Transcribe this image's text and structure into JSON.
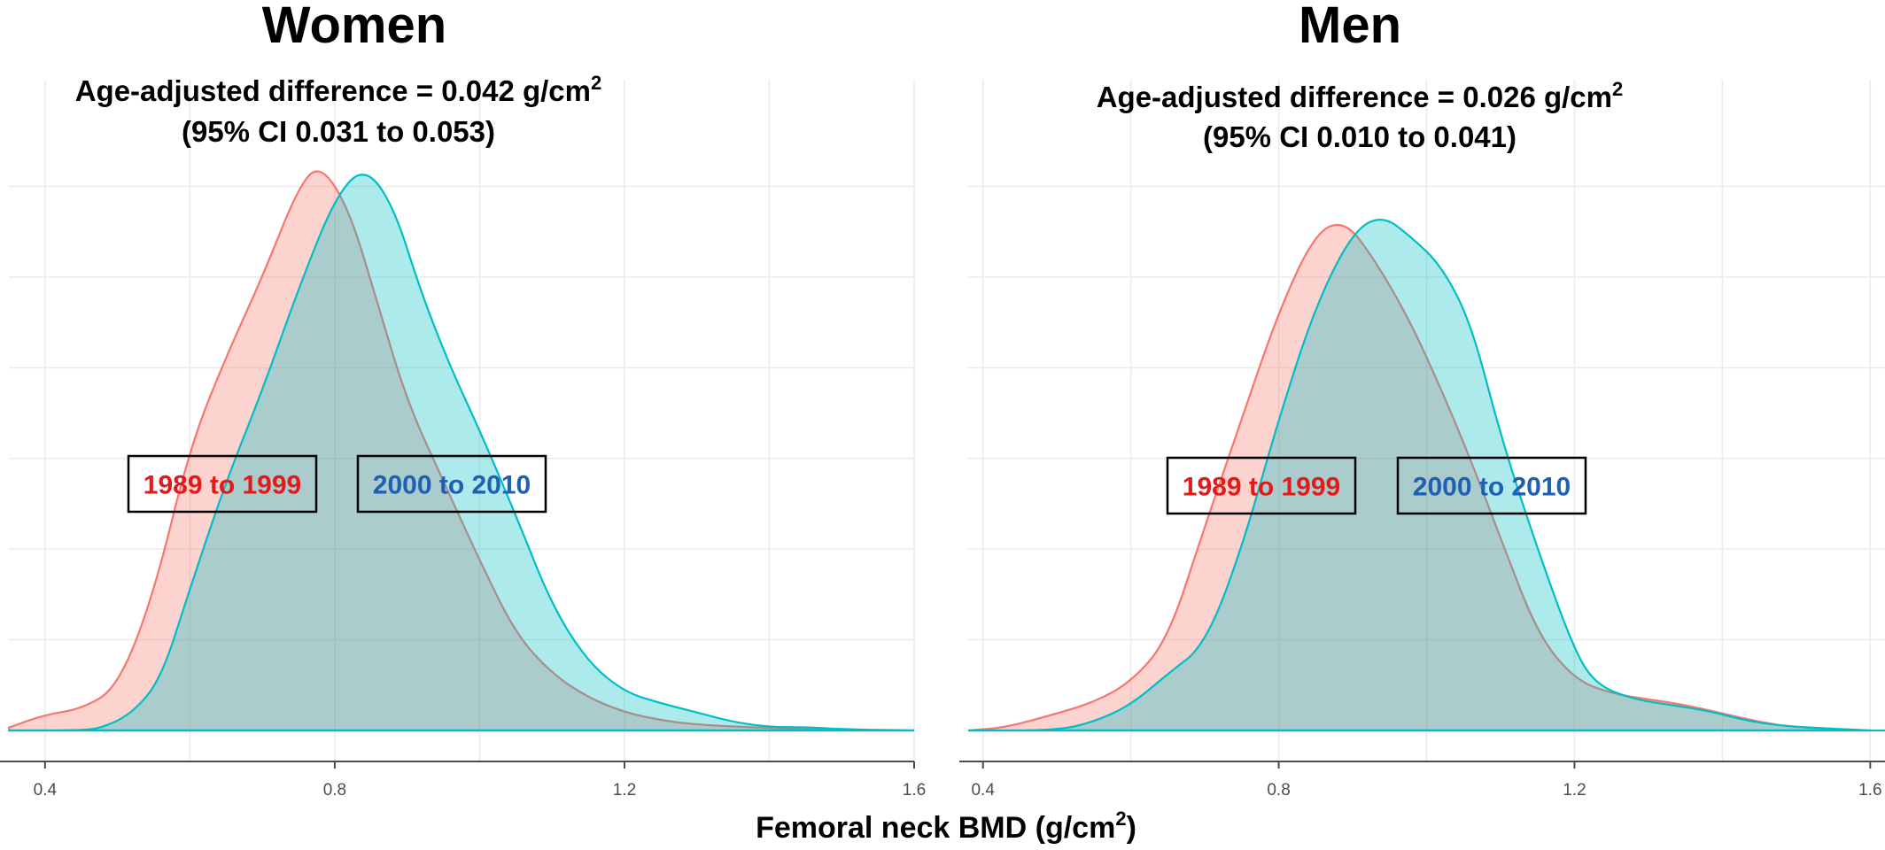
{
  "figure": {
    "xlabel": "Femoral neck BMD (g/cm",
    "xlabel_sup": "2",
    "xlabel_close": ")"
  },
  "chart_data": [
    {
      "type": "area",
      "title": "Women",
      "annotation_line1": "Age-adjusted difference = 0.042 g/cm",
      "annotation_sup": "2",
      "annotation_line2": "(95% CI 0.031 to 0.053)",
      "xlim": [
        0.35,
        1.6
      ],
      "x_ticks": [
        0.4,
        0.8,
        1.2,
        1.6
      ],
      "x_tick_labels": [
        "0.4",
        "0.8",
        "1.2",
        "1.6"
      ],
      "y_gridlines": true,
      "series": [
        {
          "name": "1989 to 1999",
          "color": "#f8766d",
          "label_color": "#e31a1c",
          "x": [
            0.35,
            0.4,
            0.45,
            0.5,
            0.55,
            0.6,
            0.65,
            0.7,
            0.75,
            0.78,
            0.82,
            0.86,
            0.9,
            0.95,
            1.0,
            1.05,
            1.1,
            1.15,
            1.2,
            1.25,
            1.3,
            1.4,
            1.5,
            1.6
          ],
          "y": [
            0.005,
            0.028,
            0.038,
            0.075,
            0.24,
            0.5,
            0.66,
            0.8,
            0.96,
            1.0,
            0.92,
            0.75,
            0.58,
            0.44,
            0.3,
            0.17,
            0.1,
            0.058,
            0.032,
            0.018,
            0.01,
            0.004,
            0.001,
            0.0
          ]
        },
        {
          "name": "2000 to 2010",
          "color": "#00bfc4",
          "label_color": "#1f5fb4",
          "x": [
            0.35,
            0.45,
            0.48,
            0.52,
            0.56,
            0.6,
            0.65,
            0.7,
            0.75,
            0.8,
            0.84,
            0.88,
            0.92,
            0.96,
            1.0,
            1.05,
            1.1,
            1.15,
            1.2,
            1.25,
            1.3,
            1.35,
            1.4,
            1.45,
            1.5,
            1.6
          ],
          "y": [
            0.0,
            0.0,
            0.005,
            0.03,
            0.09,
            0.25,
            0.44,
            0.6,
            0.78,
            0.94,
            0.996,
            0.93,
            0.77,
            0.64,
            0.53,
            0.38,
            0.22,
            0.12,
            0.068,
            0.048,
            0.032,
            0.015,
            0.006,
            0.006,
            0.002,
            0.0
          ]
        }
      ]
    },
    {
      "type": "area",
      "title": "Men",
      "annotation_line1": "Age-adjusted difference = 0.026 g/cm",
      "annotation_sup": "2",
      "annotation_line2": "(95% CI 0.010 to 0.041)",
      "xlim": [
        0.38,
        1.62
      ],
      "x_ticks": [
        0.4,
        0.8,
        1.2,
        1.6
      ],
      "x_tick_labels": [
        "0.4",
        "0.8",
        "1.2",
        "1.6"
      ],
      "y_gridlines": true,
      "series": [
        {
          "name": "1989 to 1999",
          "color": "#f8766d",
          "label_color": "#e31a1c",
          "x": [
            0.38,
            0.43,
            0.5,
            0.55,
            0.6,
            0.65,
            0.7,
            0.75,
            0.8,
            0.85,
            0.89,
            0.93,
            0.97,
            1.0,
            1.05,
            1.1,
            1.15,
            1.2,
            1.25,
            1.3,
            1.35,
            1.4,
            1.45,
            1.5,
            1.6
          ],
          "y": [
            0.0,
            0.005,
            0.03,
            0.05,
            0.085,
            0.16,
            0.36,
            0.55,
            0.74,
            0.88,
            0.9,
            0.83,
            0.74,
            0.66,
            0.51,
            0.34,
            0.17,
            0.09,
            0.065,
            0.055,
            0.045,
            0.03,
            0.015,
            0.005,
            0.0
          ]
        },
        {
          "name": "2000 to 2010",
          "color": "#00bfc4",
          "label_color": "#1f5fb4",
          "x": [
            0.38,
            0.5,
            0.55,
            0.6,
            0.65,
            0.7,
            0.75,
            0.8,
            0.85,
            0.9,
            0.94,
            0.98,
            1.02,
            1.06,
            1.1,
            1.15,
            1.2,
            1.23,
            1.28,
            1.33,
            1.38,
            1.43,
            1.48,
            1.55,
            1.6
          ],
          "y": [
            0.0,
            0.0,
            0.015,
            0.045,
            0.1,
            0.15,
            0.32,
            0.55,
            0.75,
            0.88,
            0.91,
            0.87,
            0.82,
            0.72,
            0.52,
            0.32,
            0.14,
            0.08,
            0.055,
            0.045,
            0.035,
            0.018,
            0.008,
            0.003,
            0.0
          ]
        }
      ]
    }
  ]
}
